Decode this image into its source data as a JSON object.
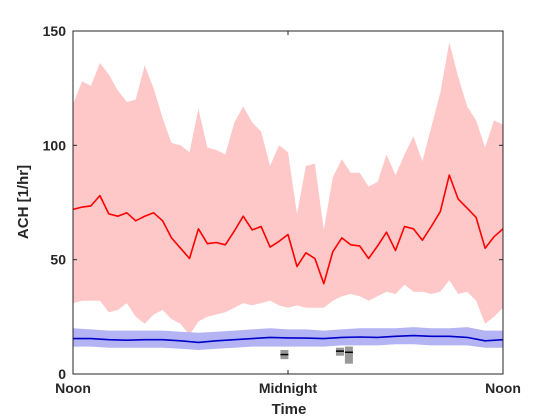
{
  "chart_data": {
    "type": "area",
    "xlabel": "Time",
    "ylabel": "ACH [1/hr]",
    "ylim": [
      0,
      150
    ],
    "yticks": [
      0,
      50,
      100,
      150
    ],
    "xlim": [
      0,
      48
    ],
    "xticks": [
      {
        "value": 0,
        "label": "Noon"
      },
      {
        "value": 24,
        "label": "Midnight"
      },
      {
        "value": 48,
        "label": "Noon"
      }
    ],
    "grid": false,
    "series": [
      {
        "color": "#ff0000",
        "band_color": "#ffc8c8",
        "x": [
          0,
          1,
          2,
          3,
          4,
          5,
          6,
          7,
          8,
          9,
          10,
          11,
          12,
          13,
          14,
          15,
          16,
          17,
          18,
          19,
          20,
          21,
          22,
          23,
          24,
          25,
          26,
          27,
          28,
          29,
          30,
          31,
          32,
          33,
          34,
          35,
          36,
          37,
          38,
          39,
          40,
          41,
          42,
          43,
          44,
          45,
          46,
          47,
          48
        ],
        "values": [
          72,
          73,
          73.5,
          78,
          70,
          69,
          70.5,
          67,
          69,
          70.5,
          67,
          59.5,
          55,
          50.5,
          63.5,
          57,
          57.5,
          56.5,
          62.5,
          69,
          63,
          64.5,
          55.5,
          58,
          61,
          47,
          53,
          50.5,
          39.5,
          53.5,
          59.5,
          56.5,
          56,
          50.5,
          56,
          62,
          54,
          64.5,
          63.5,
          58.5,
          64.5,
          71,
          87,
          76.5,
          72.5,
          68.5,
          55,
          60,
          63.5
        ],
        "upper": [
          118,
          128,
          126,
          136,
          131,
          124,
          119,
          120,
          135,
          125,
          112,
          101,
          100,
          97,
          116,
          99,
          98,
          96,
          110,
          117,
          110,
          106,
          91,
          100,
          97,
          70,
          91,
          92,
          63,
          86,
          94,
          88,
          88,
          82,
          84,
          96,
          87,
          96,
          104,
          93,
          108,
          123,
          145,
          130,
          117,
          111,
          99,
          111,
          109
        ],
        "lower": [
          31,
          32,
          32,
          32,
          27,
          28,
          31,
          25,
          22,
          26,
          28,
          24,
          22,
          17,
          23,
          25,
          26,
          27,
          29,
          31,
          30,
          31,
          32,
          30,
          29,
          30,
          29,
          29,
          29,
          32,
          34,
          35,
          34,
          32,
          34,
          36,
          35,
          39,
          36,
          36,
          35,
          36,
          41,
          35,
          36,
          32,
          22,
          25,
          29
        ]
      },
      {
        "color": "#0000cc",
        "band_color": "#b4b4f4",
        "x": [
          0,
          2,
          4,
          6,
          8,
          10,
          12,
          14,
          16,
          18,
          20,
          22,
          24,
          26,
          28,
          30,
          32,
          34,
          36,
          38,
          40,
          42,
          44,
          46,
          48
        ],
        "values": [
          15.5,
          15.5,
          15,
          14.8,
          15,
          15,
          14.5,
          13.8,
          14.5,
          15,
          15.5,
          16,
          15.8,
          15.7,
          15.5,
          16,
          16.2,
          16,
          16.5,
          16.8,
          16.5,
          16.5,
          16,
          14.5,
          15
        ],
        "upper": [
          20,
          19.5,
          19,
          19,
          19,
          19,
          18.5,
          18,
          18.5,
          19,
          19.5,
          20,
          19.5,
          19.5,
          19,
          19.5,
          20,
          20,
          20,
          20.5,
          20,
          20,
          20.5,
          19,
          19
        ],
        "lower": [
          12,
          12,
          11.5,
          11.5,
          11.5,
          11.5,
          11,
          10.5,
          11,
          11.5,
          12,
          12,
          12,
          12,
          12,
          12.5,
          12.5,
          12.5,
          13,
          13,
          12.5,
          12.5,
          12.5,
          11.5,
          11.5
        ]
      }
    ],
    "markers": [
      {
        "x": 23.6,
        "y_low": 6.5,
        "y_high": 10.5,
        "median": 8.5,
        "color": "#999999"
      },
      {
        "x": 29.8,
        "y_low": 8,
        "y_high": 11.5,
        "median": 10,
        "color": "#999999"
      },
      {
        "x": 30.8,
        "y_low": 4.5,
        "y_high": 12,
        "median": 9.5,
        "color": "#999999"
      }
    ]
  }
}
